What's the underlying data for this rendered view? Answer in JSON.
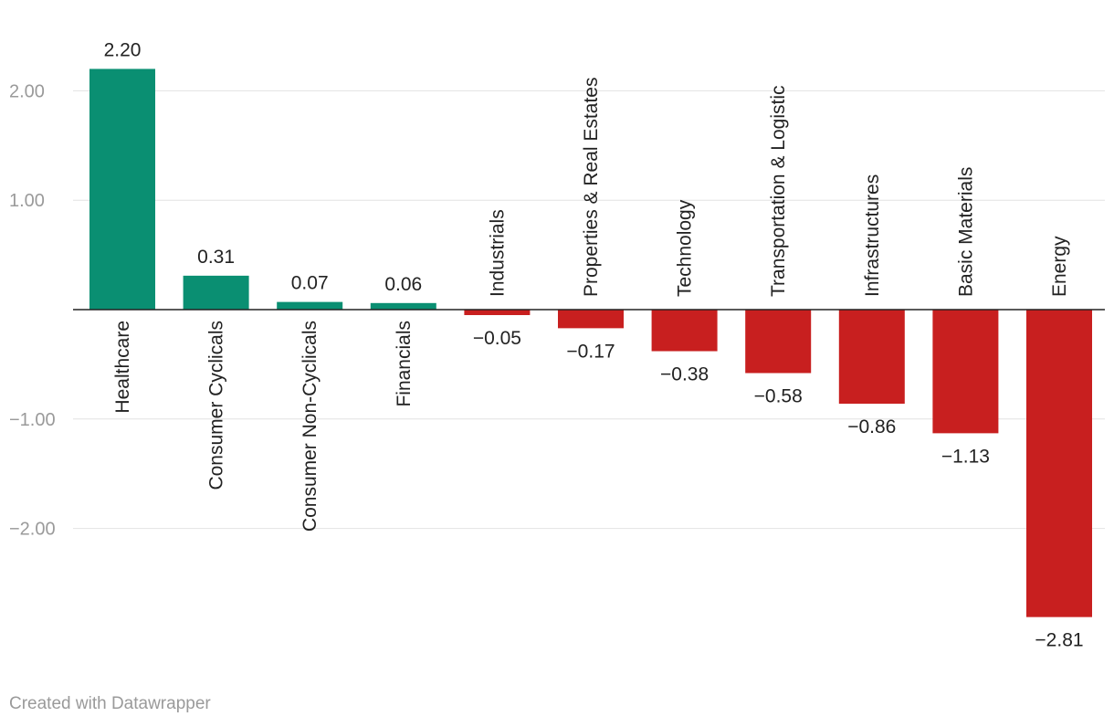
{
  "chart_data": {
    "type": "bar",
    "categories": [
      "Healthcare",
      "Consumer Cyclicals",
      "Consumer Non-Cyclicals",
      "Financials",
      "Industrials",
      "Properties & Real Estates",
      "Technology",
      "Transportation & Logistic",
      "Infrastructures",
      "Basic Materials",
      "Energy"
    ],
    "values": [
      2.2,
      0.31,
      0.07,
      0.06,
      -0.05,
      -0.17,
      -0.38,
      -0.58,
      -0.86,
      -1.13,
      -2.81
    ],
    "value_labels": [
      "2.20",
      "0.31",
      "0.07",
      "0.06",
      "−0.05",
      "−0.17",
      "−0.38",
      "−0.58",
      "−0.86",
      "−1.13",
      "−2.81"
    ],
    "title": "",
    "xlabel": "",
    "ylabel": "",
    "yticks": [
      2,
      1,
      -1,
      -2
    ],
    "ytick_labels": [
      "2.00",
      "1.00",
      "−1.00",
      "−2.00"
    ],
    "ylim": [
      -3.0,
      2.4
    ],
    "grid": true,
    "legend": "none",
    "colors": {
      "positive": "#0a8f72",
      "negative": "#c81f1f"
    }
  },
  "footer": {
    "credit": "Created with Datawrapper"
  }
}
